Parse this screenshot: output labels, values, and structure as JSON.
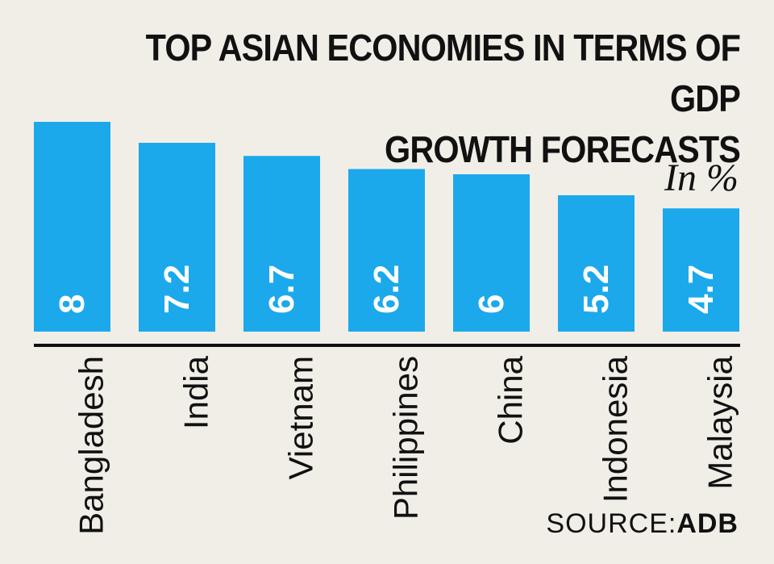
{
  "chart_data": {
    "type": "bar",
    "title_line1": "TOP ASIAN ECONOMIES IN TERMS OF GDP",
    "title_line2": "GROWTH FORECASTS",
    "unit_label": "In %",
    "categories": [
      "Bangladesh",
      "India",
      "Vietnam",
      "Philippines",
      "China",
      "Indonesia",
      "Malaysia"
    ],
    "values": [
      8,
      7.2,
      6.7,
      6.2,
      6,
      5.2,
      4.7
    ],
    "value_labels": [
      "8",
      "7.2",
      "6.7",
      "6.2",
      "6",
      "5.2",
      "4.7"
    ],
    "ylim": [
      0,
      12.5
    ],
    "bar_color": "#1ba9ec",
    "label_color": "#ffffff",
    "axis_color": "#111111",
    "grid": false,
    "legend": "none"
  },
  "source": {
    "prefix": "SOURCE:",
    "name": "ADB"
  }
}
